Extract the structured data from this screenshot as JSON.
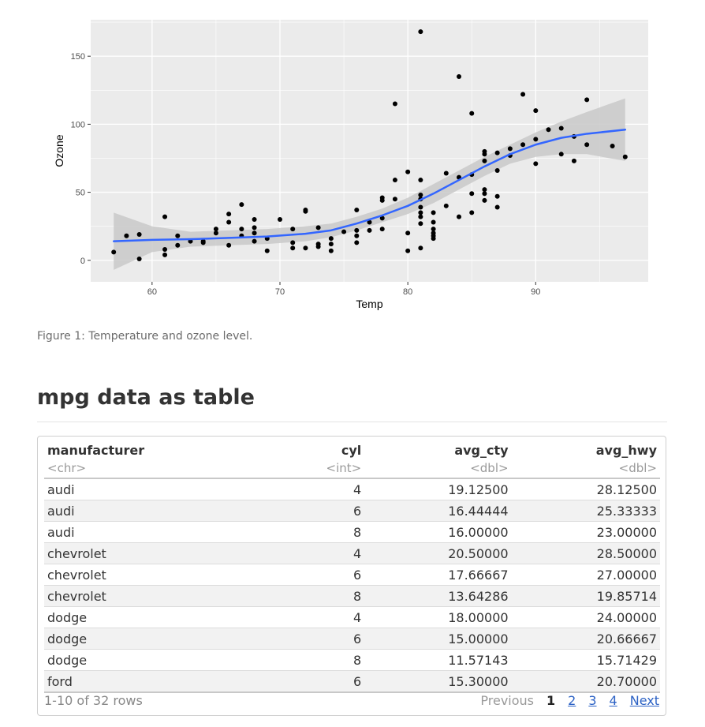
{
  "figure": {
    "caption": "Figure 1: Temperature and ozone level."
  },
  "chart_data": {
    "type": "scatter",
    "title": "",
    "xlabel": "Temp",
    "ylabel": "Ozone",
    "xlim": [
      55.2,
      98.8
    ],
    "ylim": [
      -15.8,
      176.8
    ],
    "xticks": [
      60,
      70,
      80,
      90
    ],
    "yticks": [
      0,
      50,
      100,
      150
    ],
    "grid": true,
    "colors": {
      "panel": "#ebebeb",
      "grid": "#ffffff",
      "points": "#000000",
      "smooth": "#3366ff",
      "band": "#c9c9c9"
    },
    "points": [
      [
        57,
        6
      ],
      [
        58,
        18
      ],
      [
        59,
        19
      ],
      [
        59,
        1
      ],
      [
        61,
        32
      ],
      [
        61,
        8
      ],
      [
        61,
        4
      ],
      [
        62,
        18
      ],
      [
        62,
        11
      ],
      [
        63,
        14
      ],
      [
        64,
        14
      ],
      [
        64,
        13
      ],
      [
        65,
        23
      ],
      [
        65,
        20
      ],
      [
        66,
        34
      ],
      [
        66,
        28
      ],
      [
        66,
        11
      ],
      [
        67,
        41
      ],
      [
        67,
        23
      ],
      [
        67,
        18
      ],
      [
        68,
        30
      ],
      [
        68,
        24
      ],
      [
        68,
        20
      ],
      [
        68,
        14
      ],
      [
        69,
        16
      ],
      [
        69,
        7
      ],
      [
        70,
        30
      ],
      [
        71,
        23
      ],
      [
        71,
        13
      ],
      [
        71,
        9
      ],
      [
        72,
        36
      ],
      [
        72,
        37
      ],
      [
        72,
        9
      ],
      [
        73,
        24
      ],
      [
        73,
        12
      ],
      [
        73,
        10
      ],
      [
        74,
        16
      ],
      [
        74,
        12
      ],
      [
        74,
        7
      ],
      [
        75,
        21
      ],
      [
        76,
        37
      ],
      [
        76,
        22
      ],
      [
        76,
        18
      ],
      [
        76,
        13
      ],
      [
        77,
        22
      ],
      [
        77,
        28
      ],
      [
        78,
        44
      ],
      [
        78,
        46
      ],
      [
        78,
        31
      ],
      [
        78,
        23
      ],
      [
        79,
        115
      ],
      [
        79,
        59
      ],
      [
        79,
        45
      ],
      [
        80,
        65
      ],
      [
        80,
        20
      ],
      [
        80,
        7
      ],
      [
        81,
        168
      ],
      [
        81,
        59
      ],
      [
        81,
        48
      ],
      [
        81,
        45
      ],
      [
        81,
        39
      ],
      [
        81,
        35
      ],
      [
        81,
        32
      ],
      [
        81,
        27
      ],
      [
        81,
        9
      ],
      [
        82,
        35
      ],
      [
        82,
        28
      ],
      [
        82,
        23
      ],
      [
        82,
        20
      ],
      [
        82,
        18
      ],
      [
        82,
        16
      ],
      [
        83,
        64
      ],
      [
        83,
        40
      ],
      [
        84,
        135
      ],
      [
        84,
        61
      ],
      [
        84,
        32
      ],
      [
        85,
        108
      ],
      [
        85,
        63
      ],
      [
        85,
        49
      ],
      [
        85,
        35
      ],
      [
        86,
        80
      ],
      [
        86,
        78
      ],
      [
        86,
        73
      ],
      [
        86,
        52
      ],
      [
        86,
        49
      ],
      [
        86,
        44
      ],
      [
        87,
        79
      ],
      [
        87,
        66
      ],
      [
        87,
        47
      ],
      [
        87,
        39
      ],
      [
        88,
        82
      ],
      [
        88,
        77
      ],
      [
        89,
        122
      ],
      [
        89,
        85
      ],
      [
        90,
        110
      ],
      [
        90,
        89
      ],
      [
        90,
        71
      ],
      [
        91,
        96
      ],
      [
        92,
        97
      ],
      [
        92,
        78
      ],
      [
        93,
        91
      ],
      [
        93,
        73
      ],
      [
        94,
        118
      ],
      [
        94,
        85
      ],
      [
        96,
        84
      ],
      [
        97,
        76
      ]
    ],
    "smooth": {
      "x": [
        57,
        60,
        63,
        66,
        69,
        72,
        74,
        76,
        78,
        80,
        82,
        84,
        86,
        88,
        90,
        92,
        94,
        97
      ],
      "y": [
        14,
        15,
        15.5,
        16.5,
        17.5,
        19.5,
        22,
        27,
        33,
        40,
        49,
        59,
        69,
        78,
        85,
        90,
        93,
        96
      ],
      "lo": [
        -7,
        6,
        10,
        11,
        12,
        14,
        17,
        22,
        28,
        34,
        42,
        52,
        62,
        71,
        76,
        78,
        78,
        73
      ],
      "hi": [
        35,
        25,
        21,
        22,
        23,
        25,
        27,
        32,
        38,
        46,
        56,
        66,
        76,
        85,
        94,
        102,
        109,
        119
      ]
    }
  },
  "table_section": {
    "title": "mpg data as table",
    "columns": [
      {
        "name": "manufacturer",
        "type": "<chr>"
      },
      {
        "name": "cyl",
        "type": "<int>"
      },
      {
        "name": "avg_cty",
        "type": "<dbl>"
      },
      {
        "name": "avg_hwy",
        "type": "<dbl>"
      }
    ],
    "rows": [
      [
        "audi",
        "4",
        "19.12500",
        "28.12500"
      ],
      [
        "audi",
        "6",
        "16.44444",
        "25.33333"
      ],
      [
        "audi",
        "8",
        "16.00000",
        "23.00000"
      ],
      [
        "chevrolet",
        "4",
        "20.50000",
        "28.50000"
      ],
      [
        "chevrolet",
        "6",
        "17.66667",
        "27.00000"
      ],
      [
        "chevrolet",
        "8",
        "13.64286",
        "19.85714"
      ],
      [
        "dodge",
        "4",
        "18.00000",
        "24.00000"
      ],
      [
        "dodge",
        "6",
        "15.00000",
        "20.66667"
      ],
      [
        "dodge",
        "8",
        "11.57143",
        "15.71429"
      ],
      [
        "ford",
        "6",
        "15.30000",
        "20.70000"
      ]
    ],
    "footer": {
      "row_info": "1-10 of 32 rows",
      "previous": "Previous",
      "pages": [
        "1",
        "2",
        "3",
        "4"
      ],
      "next": "Next"
    }
  }
}
